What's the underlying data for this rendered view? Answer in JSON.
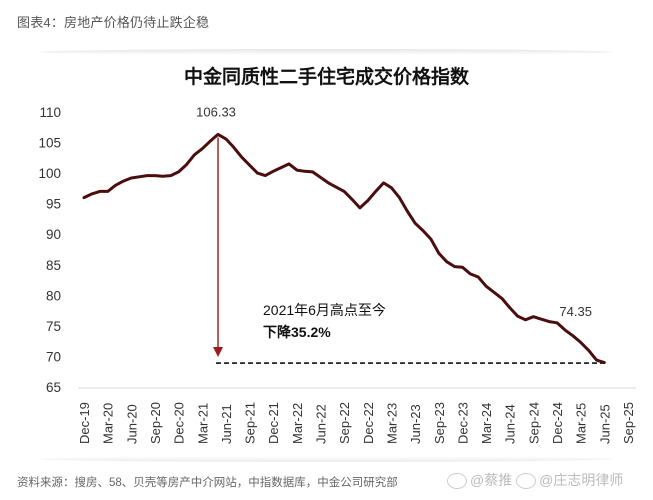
{
  "caption": "图表4：房地产价格仍待止跌企稳",
  "source": "资料来源：搜房、58、贝壳等房产中介网站，中指数据库，中金公司研究部",
  "watermark": {
    "text1": "@蔡推",
    "text2": "@庄志明律师",
    "icon": "weibo-icon"
  },
  "chart_data": {
    "type": "line",
    "title": "中金同质性二手住宅成交价格指数",
    "xlabel": "",
    "ylabel": "",
    "ylim": [
      65,
      110
    ],
    "yticks": [
      65,
      70,
      75,
      80,
      85,
      90,
      95,
      100,
      105,
      110
    ],
    "grid": false,
    "legend": "none",
    "line_color": "#4a0e0e",
    "xtick_labels": [
      "Dec-19",
      "Mar-20",
      "Jun-20",
      "Sep-20",
      "Dec-20",
      "Mar-21",
      "Jun-21",
      "Sep-21",
      "Dec-21",
      "Mar-22",
      "Jun-22",
      "Sep-22",
      "Dec-22",
      "Mar-23",
      "Jun-23",
      "Sep-23",
      "Dec-23",
      "Mar-24",
      "Jun-24",
      "Sep-24",
      "Dec-24",
      "Mar-25",
      "Jun-25",
      "Sep-25"
    ],
    "series": [
      {
        "name": "中金同质性二手住宅成交价格指数",
        "x_start": "Dec-19",
        "frequency": "monthly",
        "values": [
          96.0,
          96.6,
          97.0,
          97.0,
          98.0,
          98.7,
          99.2,
          99.4,
          99.6,
          99.6,
          99.5,
          99.6,
          100.2,
          101.4,
          103.0,
          104.0,
          105.2,
          106.33,
          105.6,
          104.2,
          102.6,
          101.3,
          100.0,
          99.6,
          100.3,
          100.9,
          101.5,
          100.5,
          100.3,
          100.2,
          99.3,
          98.4,
          97.7,
          97.0,
          95.7,
          94.3,
          95.5,
          97.0,
          98.4,
          97.6,
          96.0,
          93.8,
          91.8,
          90.6,
          89.2,
          86.9,
          85.5,
          84.7,
          84.6,
          83.5,
          83.0,
          81.5,
          80.5,
          79.5,
          78.0,
          76.6,
          76.0,
          76.5,
          76.1,
          75.7,
          75.5,
          74.35,
          73.4,
          72.3,
          71.0,
          69.4,
          69.0
        ]
      }
    ],
    "annotations": [
      {
        "text": "106.33",
        "at": "Jun-21",
        "type": "peak_label"
      },
      {
        "text": "74.35",
        "at": "Mar-25",
        "type": "value_label"
      },
      {
        "text": "2021年6月高点至今",
        "type": "note_line1"
      },
      {
        "text": "下降35.2%",
        "type": "note_line2_bold"
      },
      {
        "type": "arrow",
        "from": "Jun-21 peak",
        "to": "current level",
        "color": "#9b1c1c"
      },
      {
        "type": "dashed_hline",
        "value": 69.0,
        "from": "Jun-21",
        "to": "Sep-25"
      }
    ]
  }
}
